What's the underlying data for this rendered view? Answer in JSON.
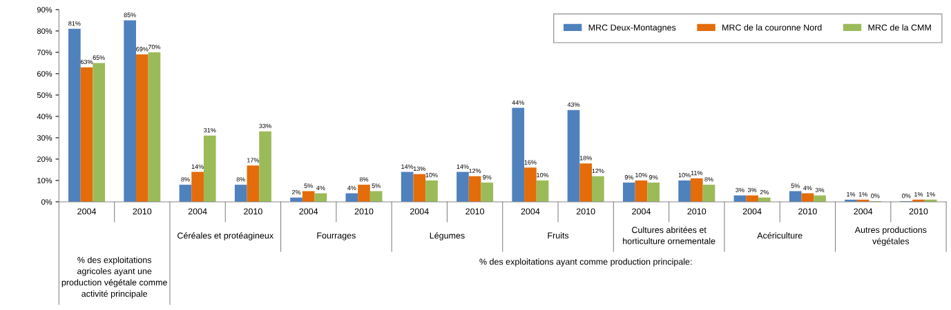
{
  "chart_data": {
    "type": "bar",
    "categories": [
      "2004",
      "2010",
      "2004",
      "2010",
      "2004",
      "2010",
      "2004",
      "2010",
      "2004",
      "2010",
      "2004",
      "2010",
      "2004",
      "2010",
      "2004",
      "2010"
    ],
    "series": [
      {
        "name": "MRC Deux-Montagnes",
        "color": "#4f81bd",
        "values": [
          81,
          85,
          8,
          8,
          2,
          4,
          14,
          14,
          44,
          43,
          9,
          10,
          3,
          5,
          1,
          0.3
        ],
        "value_labels": [
          "81%",
          "85%",
          "8%",
          "8%",
          "2%",
          "4%",
          "14%",
          "14%",
          "44%",
          "43%",
          "9%",
          "10%",
          "3%",
          "5%",
          "1%",
          "0%"
        ]
      },
      {
        "name": "MRC de la couronne Nord",
        "color": "#e46c0a",
        "values": [
          63,
          69,
          14,
          17,
          5,
          8,
          13,
          12,
          16,
          18,
          10,
          11,
          3,
          4,
          1,
          1
        ],
        "value_labels": [
          "63%",
          "69%",
          "14%",
          "17%",
          "5%",
          "8%",
          "13%",
          "12%",
          "16%",
          "18%",
          "10%",
          "11%",
          "3%",
          "4%",
          "1%",
          "1%"
        ]
      },
      {
        "name": "MRC de la CMM",
        "color": "#9bbb59",
        "values": [
          65,
          70,
          31,
          33,
          4,
          5,
          10,
          9,
          10,
          12,
          9,
          8,
          2,
          3,
          0.3,
          1
        ],
        "value_labels": [
          "65%",
          "70%",
          "31%",
          "33%",
          "4%",
          "5%",
          "10%",
          "9%",
          "10%",
          "12%",
          "9%",
          "8%",
          "2%",
          "3%",
          "0%",
          "1%"
        ]
      }
    ],
    "ylim": [
      0,
      90
    ],
    "yticks": [
      {
        "value": 0,
        "label": "0%"
      },
      {
        "value": 10,
        "label": "10%"
      },
      {
        "value": 20,
        "label": "20%"
      },
      {
        "value": 30,
        "label": "30%"
      },
      {
        "value": 40,
        "label": "40%"
      },
      {
        "value": 50,
        "label": "50%"
      },
      {
        "value": 60,
        "label": "60%"
      },
      {
        "value": 70,
        "label": "70%"
      },
      {
        "value": 80,
        "label": "80%"
      },
      {
        "value": 90,
        "label": "90%"
      }
    ],
    "grid": false,
    "legend": "top right",
    "annotations": [
      "% des exploitations\nagricoles ayant une\nproduction végétale comme\nactivité principale",
      "Céréales et protéagineux",
      "Fourrages",
      "Légumes",
      "Fruits",
      "Cultures abritées et\nhorticulture ornementale",
      "Acériculture",
      "Autres productions\nvégétales",
      "% des exploitations ayant comme production principale:"
    ]
  }
}
